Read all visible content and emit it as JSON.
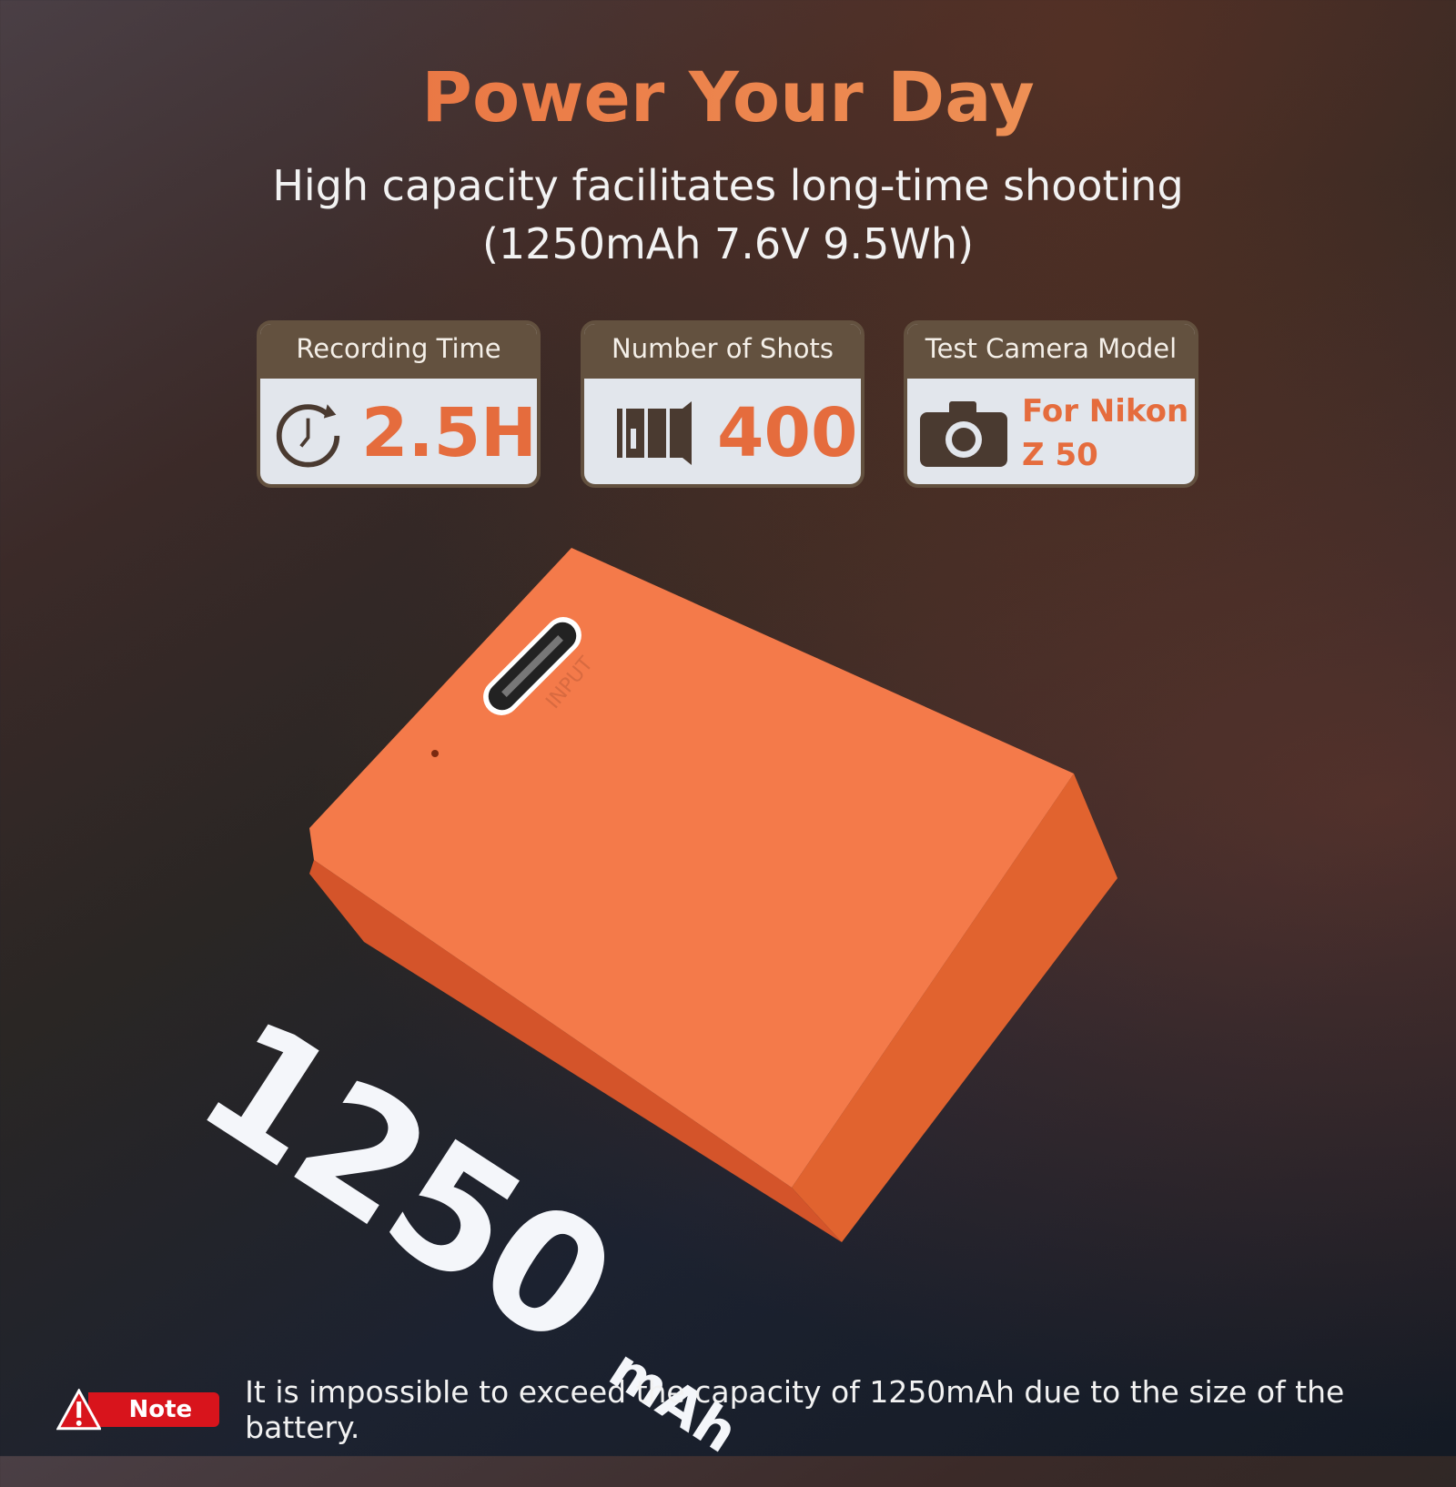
{
  "title": "Power Your Day",
  "subtitle_line1": "High capacity facilitates long-time shooting",
  "subtitle_line2": "(1250mAh 7.6V 9.5Wh)",
  "cards": [
    {
      "label": "Recording Time",
      "value": "2.5H",
      "icon": "stopwatch-icon"
    },
    {
      "label": "Number of Shots",
      "value": "400",
      "icon": "shutter-icon"
    },
    {
      "label": "Test Camera Model",
      "value_line1": "For Nikon",
      "value_line2": "Z 50",
      "icon": "camera-icon"
    }
  ],
  "battery": {
    "port_label": "INPUT",
    "color": "#f47a4a"
  },
  "capacity": {
    "number": "1250",
    "unit": "mAh"
  },
  "note": {
    "badge": "Note",
    "icon": "warning-icon",
    "text": "It is impossible to exceed the capacity of 1250mAh due to the size of the battery."
  },
  "colors": {
    "accent": "#e56c3d",
    "card_header": "#63513f",
    "note_red": "#d8141c"
  }
}
